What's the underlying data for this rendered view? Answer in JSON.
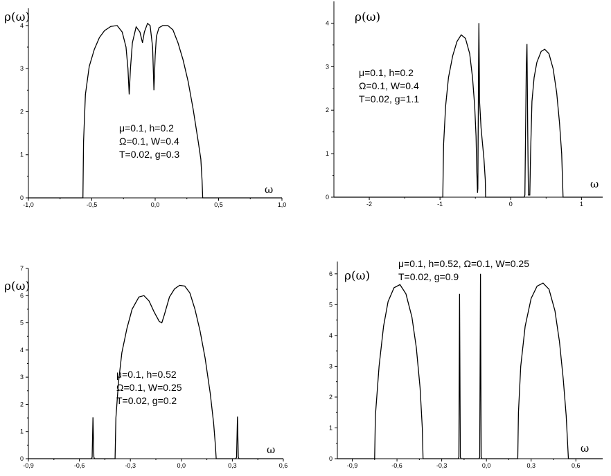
{
  "chart_data": [
    {
      "type": "line",
      "title": "",
      "xlabel": "ω",
      "ylabel": "ρ(ω)",
      "xlim": [
        -1.0,
        1.0
      ],
      "ylim": [
        0,
        4.4
      ],
      "xticks": [
        "-1,0",
        "-0,5",
        "0,0",
        "0,5",
        "1,0"
      ],
      "xtick_values": [
        -1.0,
        -0.5,
        0.0,
        0.5,
        1.0
      ],
      "yticks": [
        "0",
        "1",
        "2",
        "3",
        "4"
      ],
      "ytick_values": [
        0,
        1,
        2,
        3,
        4
      ],
      "annotation": [
        "μ=0.1, h=0.2",
        "Ω=0.1, W=0.4",
        "T=0.02,  g=0.3"
      ],
      "series": [
        {
          "x": [
            -1.0,
            -0.57,
            -0.565,
            -0.55,
            -0.52,
            -0.48,
            -0.44,
            -0.4,
            -0.35,
            -0.3,
            -0.26,
            -0.23,
            -0.215,
            -0.205,
            -0.195,
            -0.18,
            -0.15,
            -0.12,
            -0.1,
            -0.085,
            -0.06,
            -0.04,
            -0.02,
            -0.01,
            0.0,
            0.01,
            0.03,
            0.06,
            0.1,
            0.14,
            0.18,
            0.22,
            0.26,
            0.3,
            0.34,
            0.36,
            0.37,
            0.375,
            1.0
          ],
          "y": [
            0,
            0,
            1.3,
            2.4,
            3.05,
            3.45,
            3.72,
            3.88,
            3.98,
            4.0,
            3.85,
            3.5,
            3.0,
            2.4,
            3.0,
            3.6,
            3.97,
            3.85,
            3.6,
            3.85,
            4.05,
            4.0,
            3.5,
            2.5,
            3.3,
            3.75,
            3.95,
            4.0,
            4.0,
            3.9,
            3.6,
            3.2,
            2.7,
            2.05,
            1.3,
            0.9,
            0.4,
            0,
            0
          ]
        }
      ]
    },
    {
      "type": "line",
      "title": "",
      "xlabel": "ω",
      "ylabel": "ρ(ω)",
      "xlim": [
        -2.5,
        1.3
      ],
      "ylim": [
        0,
        4.5
      ],
      "xticks": [
        "-2",
        "-1",
        "0",
        "1"
      ],
      "xtick_values": [
        -2,
        -1,
        0,
        1
      ],
      "yticks": [
        "0",
        "1",
        "2",
        "3",
        "4"
      ],
      "ytick_values": [
        0,
        1,
        2,
        3,
        4
      ],
      "annotation": [
        "μ=0.1, h=0.2",
        "Ω=0.1, W=0.4",
        "T=0.02,  g=1.1"
      ],
      "series": [
        {
          "x": [
            -2.5,
            -0.96,
            -0.95,
            -0.92,
            -0.88,
            -0.82,
            -0.76,
            -0.7,
            -0.64,
            -0.58,
            -0.54,
            -0.51,
            -0.49,
            -0.48,
            -0.47,
            -0.465,
            -0.455,
            -0.45,
            -0.44,
            -0.42,
            -0.4,
            -0.38,
            -0.36,
            -0.355,
            0.19,
            0.2,
            0.22,
            0.23,
            0.24,
            0.25,
            0.27,
            0.28,
            0.29,
            0.3,
            0.33,
            0.37,
            0.43,
            0.48,
            0.54,
            0.6,
            0.65,
            0.69,
            0.72,
            0.73,
            0.74,
            1.3
          ],
          "y": [
            0,
            0,
            1.2,
            2.1,
            2.75,
            3.25,
            3.58,
            3.73,
            3.65,
            3.3,
            2.75,
            2.1,
            1.4,
            0.6,
            0.1,
            0.2,
            3.0,
            4.0,
            2.2,
            1.6,
            1.25,
            0.9,
            0.4,
            0,
            0,
            0.05,
            3.0,
            3.52,
            1.5,
            0.05,
            0.05,
            1.0,
            1.6,
            2.2,
            2.75,
            3.1,
            3.35,
            3.4,
            3.3,
            2.95,
            2.4,
            1.7,
            1.0,
            0.5,
            0,
            0
          ]
        }
      ]
    },
    {
      "type": "line",
      "title": "",
      "xlabel": "ω",
      "ylabel": "ρ(ω)",
      "xlim": [
        -0.9,
        0.6
      ],
      "ylim": [
        0,
        7
      ],
      "xticks": [
        "-0,9",
        "-0,6",
        "-0,3",
        "0,0",
        "0,3",
        "0,6"
      ],
      "xtick_values": [
        -0.9,
        -0.6,
        -0.3,
        0.0,
        0.3,
        0.6
      ],
      "yticks": [
        "0",
        "1",
        "2",
        "3",
        "4",
        "5",
        "6",
        "7"
      ],
      "ytick_values": [
        0,
        1,
        2,
        3,
        4,
        5,
        6,
        7
      ],
      "annotation": [
        "μ=0.1, h=0.52",
        "Ω=0.1, W=0.25",
        "T=0.02,  g=0.2"
      ],
      "series": [
        {
          "x": [
            -0.9,
            -0.53,
            -0.525,
            -0.52,
            -0.515,
            -0.51,
            -0.39,
            -0.385,
            -0.37,
            -0.35,
            -0.32,
            -0.29,
            -0.25,
            -0.22,
            -0.19,
            -0.16,
            -0.13,
            -0.115,
            -0.1,
            -0.07,
            -0.04,
            -0.01,
            0.02,
            0.05,
            0.08,
            0.11,
            0.14,
            0.17,
            0.19,
            0.2,
            0.205,
            0.32,
            0.325,
            0.33,
            0.335,
            0.34,
            0.6
          ],
          "y": [
            0,
            0,
            0.05,
            1.52,
            0.05,
            0,
            0,
            1.5,
            2.8,
            3.9,
            4.8,
            5.5,
            5.95,
            6.0,
            5.8,
            5.4,
            5.05,
            5.0,
            5.3,
            5.95,
            6.25,
            6.38,
            6.35,
            6.1,
            5.5,
            4.7,
            3.7,
            2.4,
            1.3,
            0.5,
            0,
            0,
            0.05,
            1.55,
            0.05,
            0,
            0
          ]
        }
      ]
    },
    {
      "type": "line",
      "title": "",
      "xlabel": "ω",
      "ylabel": "ρ(ω)",
      "xlim": [
        -1.0,
        0.78
      ],
      "ylim": [
        0,
        6.4
      ],
      "xticks": [
        "-0,9",
        "-0,6",
        "-0,3",
        "0,0",
        "0,3",
        "0,6"
      ],
      "xtick_values": [
        -0.9,
        -0.6,
        -0.3,
        0.0,
        0.3,
        0.6
      ],
      "yticks": [
        "0",
        "1",
        "2",
        "3",
        "4",
        "5",
        "6"
      ],
      "ytick_values": [
        0,
        1,
        2,
        3,
        4,
        5,
        6
      ],
      "annotation": [
        "μ=0.1, h=0.52,  Ω=0.1, W=0.25",
        "T=0.02,  g=0.9"
      ],
      "series": [
        {
          "x": [
            -1.0,
            -0.75,
            -0.745,
            -0.72,
            -0.69,
            -0.66,
            -0.62,
            -0.58,
            -0.54,
            -0.5,
            -0.47,
            -0.445,
            -0.43,
            -0.425,
            -0.19,
            -0.185,
            -0.18,
            -0.175,
            -0.17,
            -0.05,
            -0.045,
            -0.04,
            -0.035,
            -0.03,
            0.21,
            0.215,
            0.23,
            0.26,
            0.3,
            0.34,
            0.38,
            0.42,
            0.46,
            0.49,
            0.515,
            0.535,
            0.55,
            0.78
          ],
          "y": [
            0,
            0,
            1.4,
            3.0,
            4.3,
            5.1,
            5.55,
            5.65,
            5.35,
            4.6,
            3.6,
            2.3,
            1.0,
            0,
            0,
            0.05,
            5.35,
            0.05,
            0,
            0,
            0.05,
            6.0,
            0.05,
            0,
            0,
            1.5,
            3.0,
            4.3,
            5.2,
            5.6,
            5.7,
            5.5,
            4.8,
            3.8,
            2.6,
            1.4,
            0,
            0
          ]
        }
      ]
    }
  ]
}
